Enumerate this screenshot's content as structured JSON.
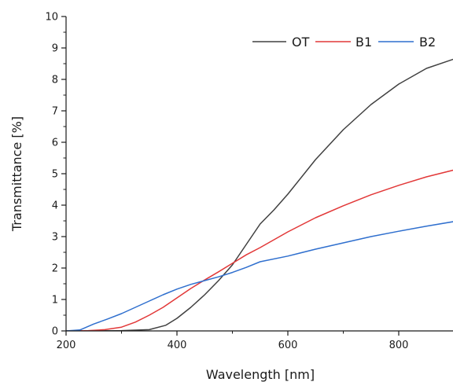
{
  "chart_data": {
    "type": "line",
    "title": "",
    "xlabel": "Wavelength [nm]",
    "ylabel": "Transmittance [%]",
    "xlim": [
      200,
      900
    ],
    "ylim": [
      0,
      10
    ],
    "x_ticks": [
      200,
      400,
      600,
      800
    ],
    "y_ticks": [
      0,
      1,
      2,
      3,
      4,
      5,
      6,
      7,
      8,
      9,
      10
    ],
    "x_tick_labels": [
      "200",
      "400",
      "600",
      "800"
    ],
    "y_tick_labels": [
      "0",
      "1",
      "2",
      "3",
      "4",
      "5",
      "6",
      "7",
      "8",
      "9",
      "10"
    ],
    "grid": false,
    "legend_position": "top-right",
    "series": [
      {
        "name": "OT",
        "color": "#404040",
        "x": [
          200,
          250,
          300,
          350,
          380,
          400,
          425,
          450,
          475,
          500,
          525,
          550,
          575,
          600,
          650,
          700,
          750,
          800,
          850,
          900
        ],
        "y": [
          0,
          0,
          0.01,
          0.04,
          0.18,
          0.4,
          0.75,
          1.15,
          1.6,
          2.1,
          2.75,
          3.4,
          3.85,
          4.35,
          5.45,
          6.4,
          7.2,
          7.85,
          8.35,
          8.65
        ]
      },
      {
        "name": "B1",
        "color": "#e23838",
        "x": [
          200,
          240,
          270,
          300,
          325,
          350,
          375,
          400,
          425,
          450,
          475,
          500,
          525,
          550,
          600,
          650,
          700,
          750,
          800,
          850,
          900
        ],
        "y": [
          0,
          0.01,
          0.04,
          0.12,
          0.28,
          0.5,
          0.75,
          1.05,
          1.35,
          1.62,
          1.88,
          2.15,
          2.42,
          2.65,
          3.15,
          3.6,
          3.98,
          4.33,
          4.63,
          4.9,
          5.12
        ]
      },
      {
        "name": "B2",
        "color": "#2f6fce",
        "x": [
          200,
          225,
          250,
          275,
          300,
          325,
          350,
          375,
          400,
          425,
          450,
          475,
          500,
          525,
          550,
          600,
          650,
          700,
          750,
          800,
          850,
          900
        ],
        "y": [
          0,
          0.03,
          0.22,
          0.38,
          0.55,
          0.75,
          0.95,
          1.15,
          1.33,
          1.48,
          1.6,
          1.72,
          1.86,
          2.02,
          2.2,
          2.38,
          2.6,
          2.8,
          3.0,
          3.17,
          3.33,
          3.48
        ]
      }
    ]
  }
}
